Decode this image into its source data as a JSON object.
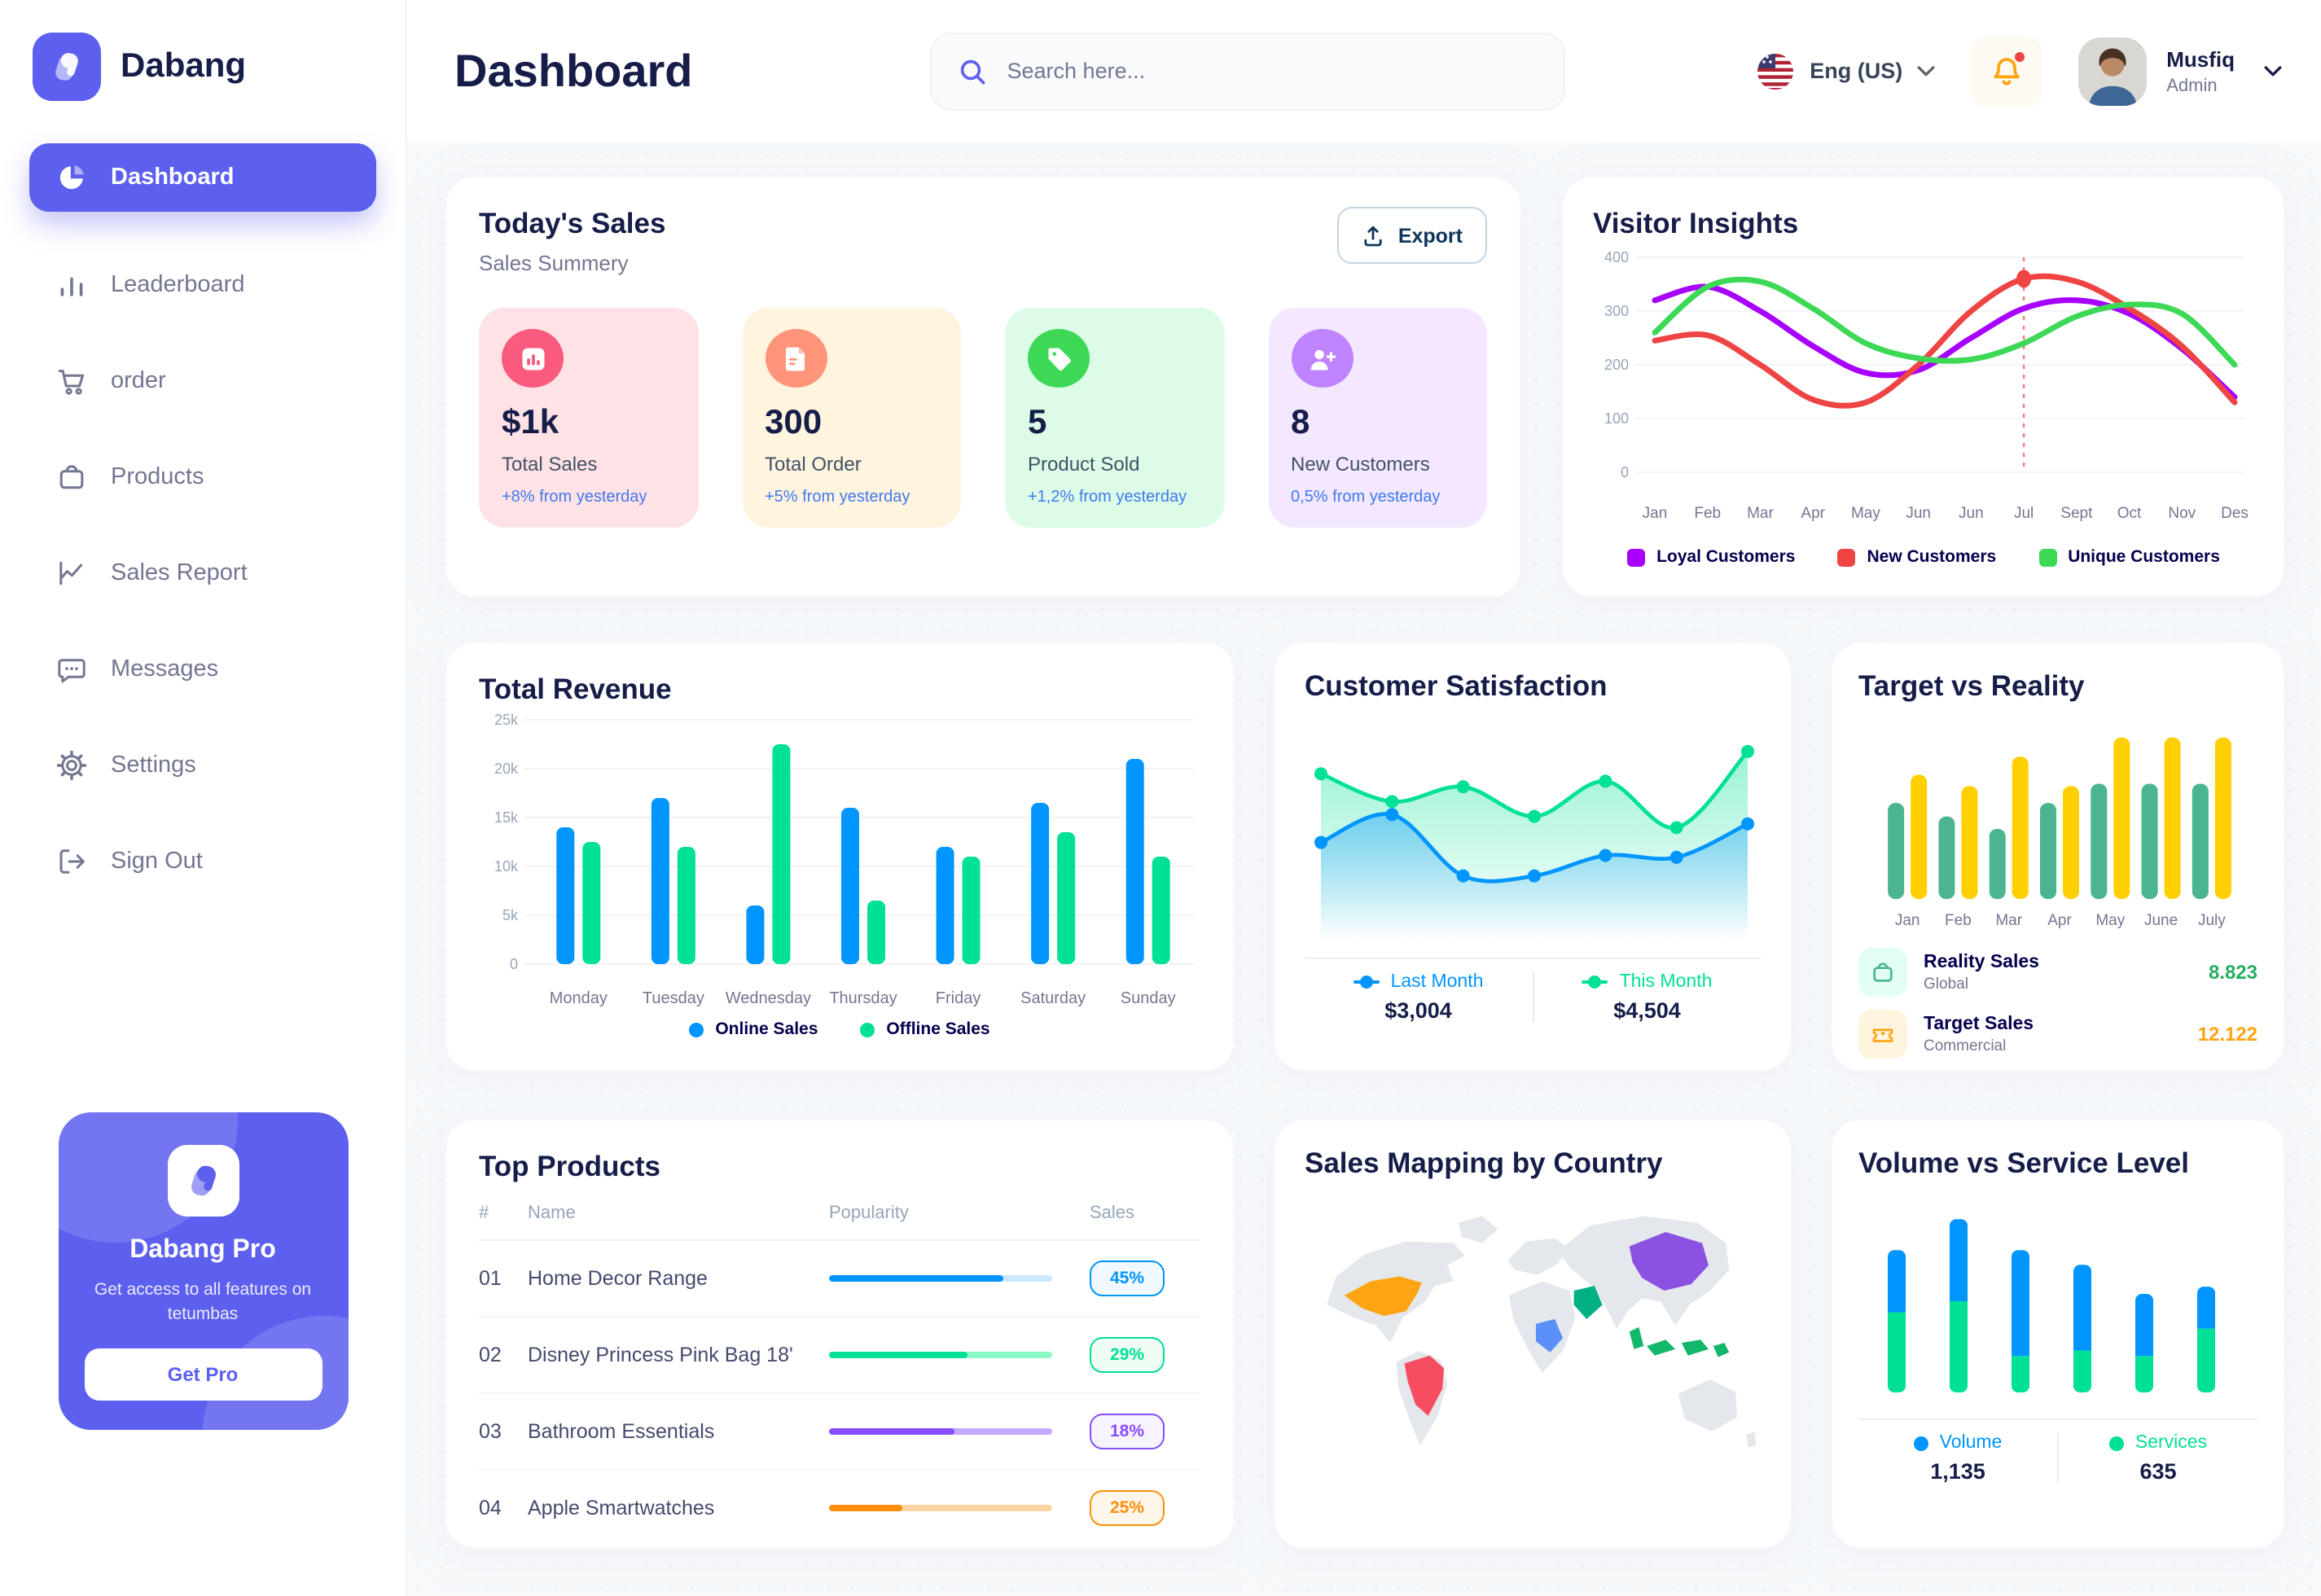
{
  "brand": {
    "name": "Dabang"
  },
  "header": {
    "title": "Dashboard",
    "search_placeholder": "Search here...",
    "language": "Eng (US)",
    "user": {
      "name": "Musfiq",
      "role": "Admin"
    }
  },
  "sidebar": {
    "items": [
      {
        "label": "Dashboard",
        "icon": "dashboard",
        "active": true
      },
      {
        "label": "Leaderboard",
        "icon": "leaderboard",
        "active": false
      },
      {
        "label": "order",
        "icon": "order",
        "active": false
      },
      {
        "label": "Products",
        "icon": "products",
        "active": false
      },
      {
        "label": "Sales Report",
        "icon": "sales-report",
        "active": false
      },
      {
        "label": "Messages",
        "icon": "messages",
        "active": false
      },
      {
        "label": "Settings",
        "icon": "settings",
        "active": false
      },
      {
        "label": "Sign Out",
        "icon": "sign-out",
        "active": false
      }
    ],
    "pro": {
      "title": "Dabang Pro",
      "subtitle": "Get access to all features on tetumbas",
      "button": "Get Pro"
    }
  },
  "today_sales": {
    "title": "Today's Sales",
    "subtitle": "Sales Summery",
    "export_label": "Export",
    "delta_color": "#4079ED",
    "cards": [
      {
        "value": "$1k",
        "label": "Total Sales",
        "delta": "+8% from yesterday",
        "bg": "#FFE2E5",
        "icon_bg": "#FA5A7D",
        "icon": "chart"
      },
      {
        "value": "300",
        "label": "Total Order",
        "delta": "+5% from yesterday",
        "bg": "#FFF4DE",
        "icon_bg": "#FF947A",
        "icon": "file"
      },
      {
        "value": "5",
        "label": "Product Sold",
        "delta": "+1,2% from yesterday",
        "bg": "#DCFCE7",
        "icon_bg": "#3CD856",
        "icon": "tag"
      },
      {
        "value": "8",
        "label": "New Customers",
        "delta": "0,5% from yesterday",
        "bg": "#F3E8FF",
        "icon_bg": "#BF83FF",
        "icon": "user-plus"
      }
    ]
  },
  "chart_data": [
    {
      "id": "visitor_insights",
      "type": "line",
      "title": "Visitor Insights",
      "x": [
        "Jan",
        "Feb",
        "Mar",
        "Apr",
        "May",
        "Jun",
        "Jun",
        "Jul",
        "Sept",
        "Oct",
        "Nov",
        "Des"
      ],
      "ylim": [
        0,
        400
      ],
      "yticks": [
        0,
        100,
        200,
        300,
        400
      ],
      "grid": true,
      "legend_position": "bottom",
      "series": [
        {
          "name": "Loyal Customers",
          "color": "#A700FF",
          "values": [
            320,
            345,
            300,
            235,
            185,
            190,
            250,
            305,
            320,
            295,
            230,
            140
          ]
        },
        {
          "name": "New Customers",
          "color": "#EF4444",
          "values": [
            245,
            255,
            200,
            135,
            130,
            200,
            300,
            360,
            355,
            305,
            235,
            130
          ]
        },
        {
          "name": "Unique Customers",
          "color": "#3CD856",
          "values": [
            260,
            345,
            355,
            305,
            240,
            212,
            210,
            240,
            290,
            312,
            295,
            200
          ]
        }
      ],
      "marker": {
        "series": "New Customers",
        "x_index": 7,
        "value": 360
      }
    },
    {
      "id": "total_revenue",
      "type": "bar",
      "title": "Total Revenue",
      "categories": [
        "Monday",
        "Tuesday",
        "Wednesday",
        "Thursday",
        "Friday",
        "Saturday",
        "Sunday"
      ],
      "ylim": [
        0,
        25000
      ],
      "ytick_labels": [
        "0",
        "5k",
        "10k",
        "15k",
        "20k",
        "25k"
      ],
      "grid": true,
      "legend_position": "bottom",
      "series": [
        {
          "name": "Online Sales",
          "color": "#0095FF",
          "values": [
            14000,
            17000,
            6000,
            16000,
            12000,
            16500,
            21000
          ]
        },
        {
          "name": "Offline Sales",
          "color": "#00E096",
          "values": [
            12500,
            12000,
            22500,
            6500,
            11000,
            13500,
            11000
          ]
        }
      ]
    },
    {
      "id": "customer_satisfaction",
      "type": "area",
      "title": "Customer Satisfaction",
      "ylim": [
        0,
        100
      ],
      "legend_position": "bottom",
      "series": [
        {
          "name": "Last Month",
          "color": "#0095FF",
          "total": "$3,004",
          "values": [
            48,
            63,
            30,
            30,
            41,
            40,
            58
          ]
        },
        {
          "name": "This Month",
          "color": "#00E096",
          "total": "$4,504",
          "values": [
            85,
            70,
            78,
            62,
            81,
            56,
            97
          ]
        }
      ]
    },
    {
      "id": "target_vs_reality",
      "type": "bar",
      "title": "Target vs Reality",
      "categories": [
        "Jan",
        "Feb",
        "Mar",
        "Apr",
        "May",
        "June",
        "July"
      ],
      "ylim": [
        0,
        15
      ],
      "series": [
        {
          "name": "Reality Sales",
          "subtitle": "Global",
          "color": "#4AB58E",
          "icon_bg": "#E2FFF3",
          "value_label": "8.823",
          "value_color": "#27AE60",
          "values": [
            8.5,
            7.3,
            6.2,
            8.5,
            10.2,
            10.2,
            10.2
          ]
        },
        {
          "name": "Target Sales",
          "subtitle": "Commercial",
          "color": "#FFCF00",
          "icon_bg": "#FFF4DE",
          "value_label": "12.122",
          "value_color": "#FFA412",
          "values": [
            11,
            10,
            12.6,
            10,
            14.3,
            14.3,
            14.3
          ]
        }
      ]
    },
    {
      "id": "sales_map",
      "type": "map",
      "title": "Sales Mapping by Country",
      "countries": [
        {
          "name": "United States",
          "color": "#FFA412"
        },
        {
          "name": "Brazil",
          "color": "#F64E60"
        },
        {
          "name": "DR Congo",
          "color": "#5B8FF9"
        },
        {
          "name": "Saudi Arabia",
          "color": "#00B085"
        },
        {
          "name": "China",
          "color": "#8B51E0"
        },
        {
          "name": "Indonesia",
          "color": "#12B76A"
        }
      ]
    },
    {
      "id": "volume_vs_service",
      "type": "stacked-bar",
      "title": "Volume vs Service Level",
      "legend_position": "bottom",
      "series": [
        {
          "name": "Volume",
          "color": "#0095FF",
          "total": "1,135",
          "values": [
            340,
            450,
            580,
            470,
            340,
            230
          ]
        },
        {
          "name": "Services",
          "color": "#00E096",
          "total": "635",
          "values": [
            440,
            500,
            200,
            230,
            200,
            350
          ]
        }
      ]
    }
  ],
  "top_products": {
    "title": "Top Products",
    "headers": [
      "#",
      "Name",
      "Popularity",
      "Sales"
    ],
    "rows": [
      {
        "num": "01",
        "name": "Home Decor Range",
        "popularity": 78,
        "sales": "45%",
        "color": "#0095FF",
        "track": "#CDE7FF",
        "badge_bg": "#F0F9FF"
      },
      {
        "num": "02",
        "name": "Disney Princess Pink Bag 18'",
        "popularity": 62,
        "sales": "29%",
        "color": "#00E096",
        "track": "#8CFAC7",
        "badge_bg": "#F0FDF4"
      },
      {
        "num": "03",
        "name": "Bathroom Essentials",
        "popularity": 56,
        "sales": "18%",
        "color": "#884DFF",
        "track": "#C5A8FF",
        "badge_bg": "#F8F4FF"
      },
      {
        "num": "04",
        "name": "Apple Smartwatches",
        "popularity": 33,
        "sales": "25%",
        "color": "#FF8F0D",
        "track": "#FFD5A4",
        "badge_bg": "#FFF6EA"
      }
    ]
  }
}
